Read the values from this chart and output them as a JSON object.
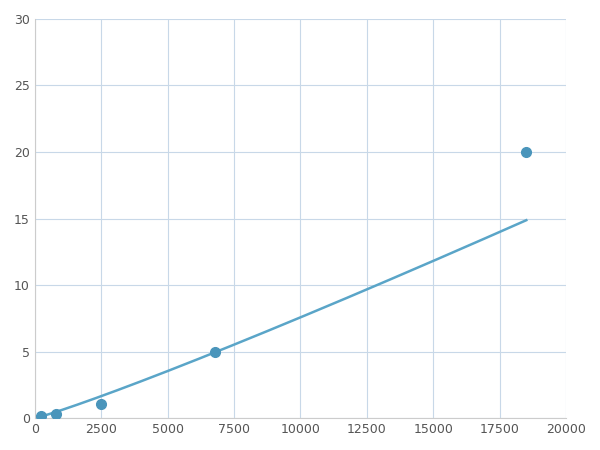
{
  "x_points": [
    250,
    800,
    2500,
    6800,
    18500
  ],
  "y_points": [
    0.2,
    0.35,
    1.1,
    5.0,
    20.0
  ],
  "line_color": "#5aa5c8",
  "marker_color": "#4a95bb",
  "marker_size": 7,
  "line_width": 1.8,
  "xlim": [
    0,
    20000
  ],
  "ylim": [
    0,
    30
  ],
  "xticks": [
    0,
    2500,
    5000,
    7500,
    10000,
    12500,
    15000,
    17500,
    20000
  ],
  "yticks": [
    0,
    5,
    10,
    15,
    20,
    25,
    30
  ],
  "grid_color": "#c8d8e8",
  "background_color": "#ffffff",
  "figsize": [
    6.0,
    4.5
  ],
  "dpi": 100
}
